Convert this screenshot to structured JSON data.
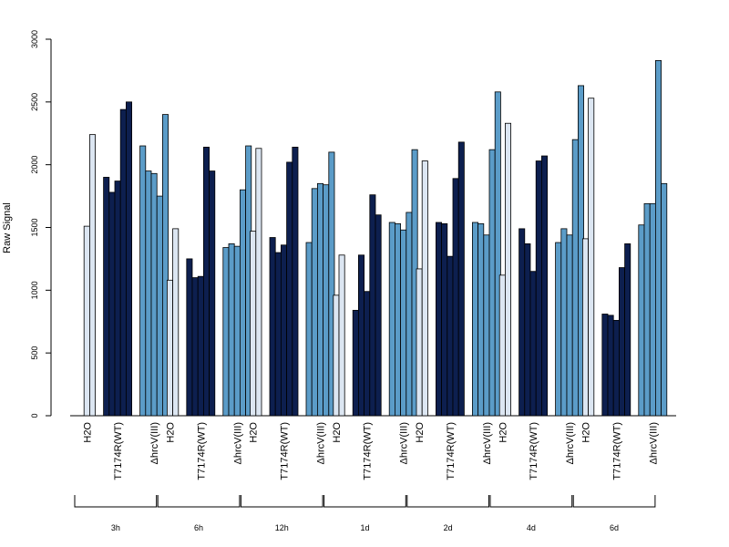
{
  "chart_data": {
    "type": "bar",
    "ylabel": "Raw Signal",
    "xlabel": "",
    "title": "",
    "ylim": [
      0,
      3000
    ],
    "yticks": [
      0,
      500,
      1000,
      1500,
      2000,
      2500,
      3000
    ],
    "grid": false,
    "legend": "none",
    "colors": {
      "H2O": "#dce6f2",
      "T7174R(WT)": "#0d1f4f",
      "ΔhrcV(III)": "#5b9cc8"
    },
    "time_points": [
      "3h",
      "6h",
      "12h",
      "1d",
      "2d",
      "4d",
      "6d"
    ],
    "treatments": [
      "H2O",
      "T7174R(WT)",
      "ΔhrcV(III)"
    ],
    "groups": [
      {
        "time": "3h",
        "H2O": [
          1510,
          2240
        ],
        "T7174R(WT)": [
          1900,
          1780,
          1870,
          2440,
          2500
        ],
        "ΔhrcV(III)": [
          2150,
          1950,
          1930,
          1750,
          2400
        ]
      },
      {
        "time": "6h",
        "H2O": [
          1080,
          1490
        ],
        "T7174R(WT)": [
          1250,
          1100,
          1110,
          2140,
          1950
        ],
        "ΔhrcV(III)": [
          1340,
          1370,
          1350,
          1800,
          2150
        ]
      },
      {
        "time": "12h",
        "H2O": [
          1470,
          2130
        ],
        "T7174R(WT)": [
          1420,
          1300,
          1360,
          2020,
          2140
        ],
        "ΔhrcV(III)": [
          1380,
          1810,
          1850,
          1840,
          2100
        ]
      },
      {
        "time": "1d",
        "H2O": [
          960,
          1280
        ],
        "T7174R(WT)": [
          840,
          1280,
          990,
          1760,
          1600
        ],
        "ΔhrcV(III)": [
          1540,
          1530,
          1480,
          1620,
          2120
        ]
      },
      {
        "time": "2d",
        "H2O": [
          1170,
          2030
        ],
        "T7174R(WT)": [
          1540,
          1530,
          1270,
          1890,
          2180
        ],
        "ΔhrcV(III)": [
          1540,
          1530,
          1440,
          2120,
          2580
        ]
      },
      {
        "time": "4d",
        "H2O": [
          1120,
          2330
        ],
        "T7174R(WT)": [
          1490,
          1370,
          1150,
          2030,
          2070
        ],
        "ΔhrcV(III)": [
          1380,
          1490,
          1440,
          2200,
          2630
        ]
      },
      {
        "time": "6d",
        "H2O": [
          1410,
          2530
        ],
        "T7174R(WT)": [
          810,
          800,
          760,
          1180,
          1370
        ],
        "ΔhrcV(III)": [
          1520,
          1690,
          1690,
          2830,
          1850
        ]
      }
    ]
  }
}
